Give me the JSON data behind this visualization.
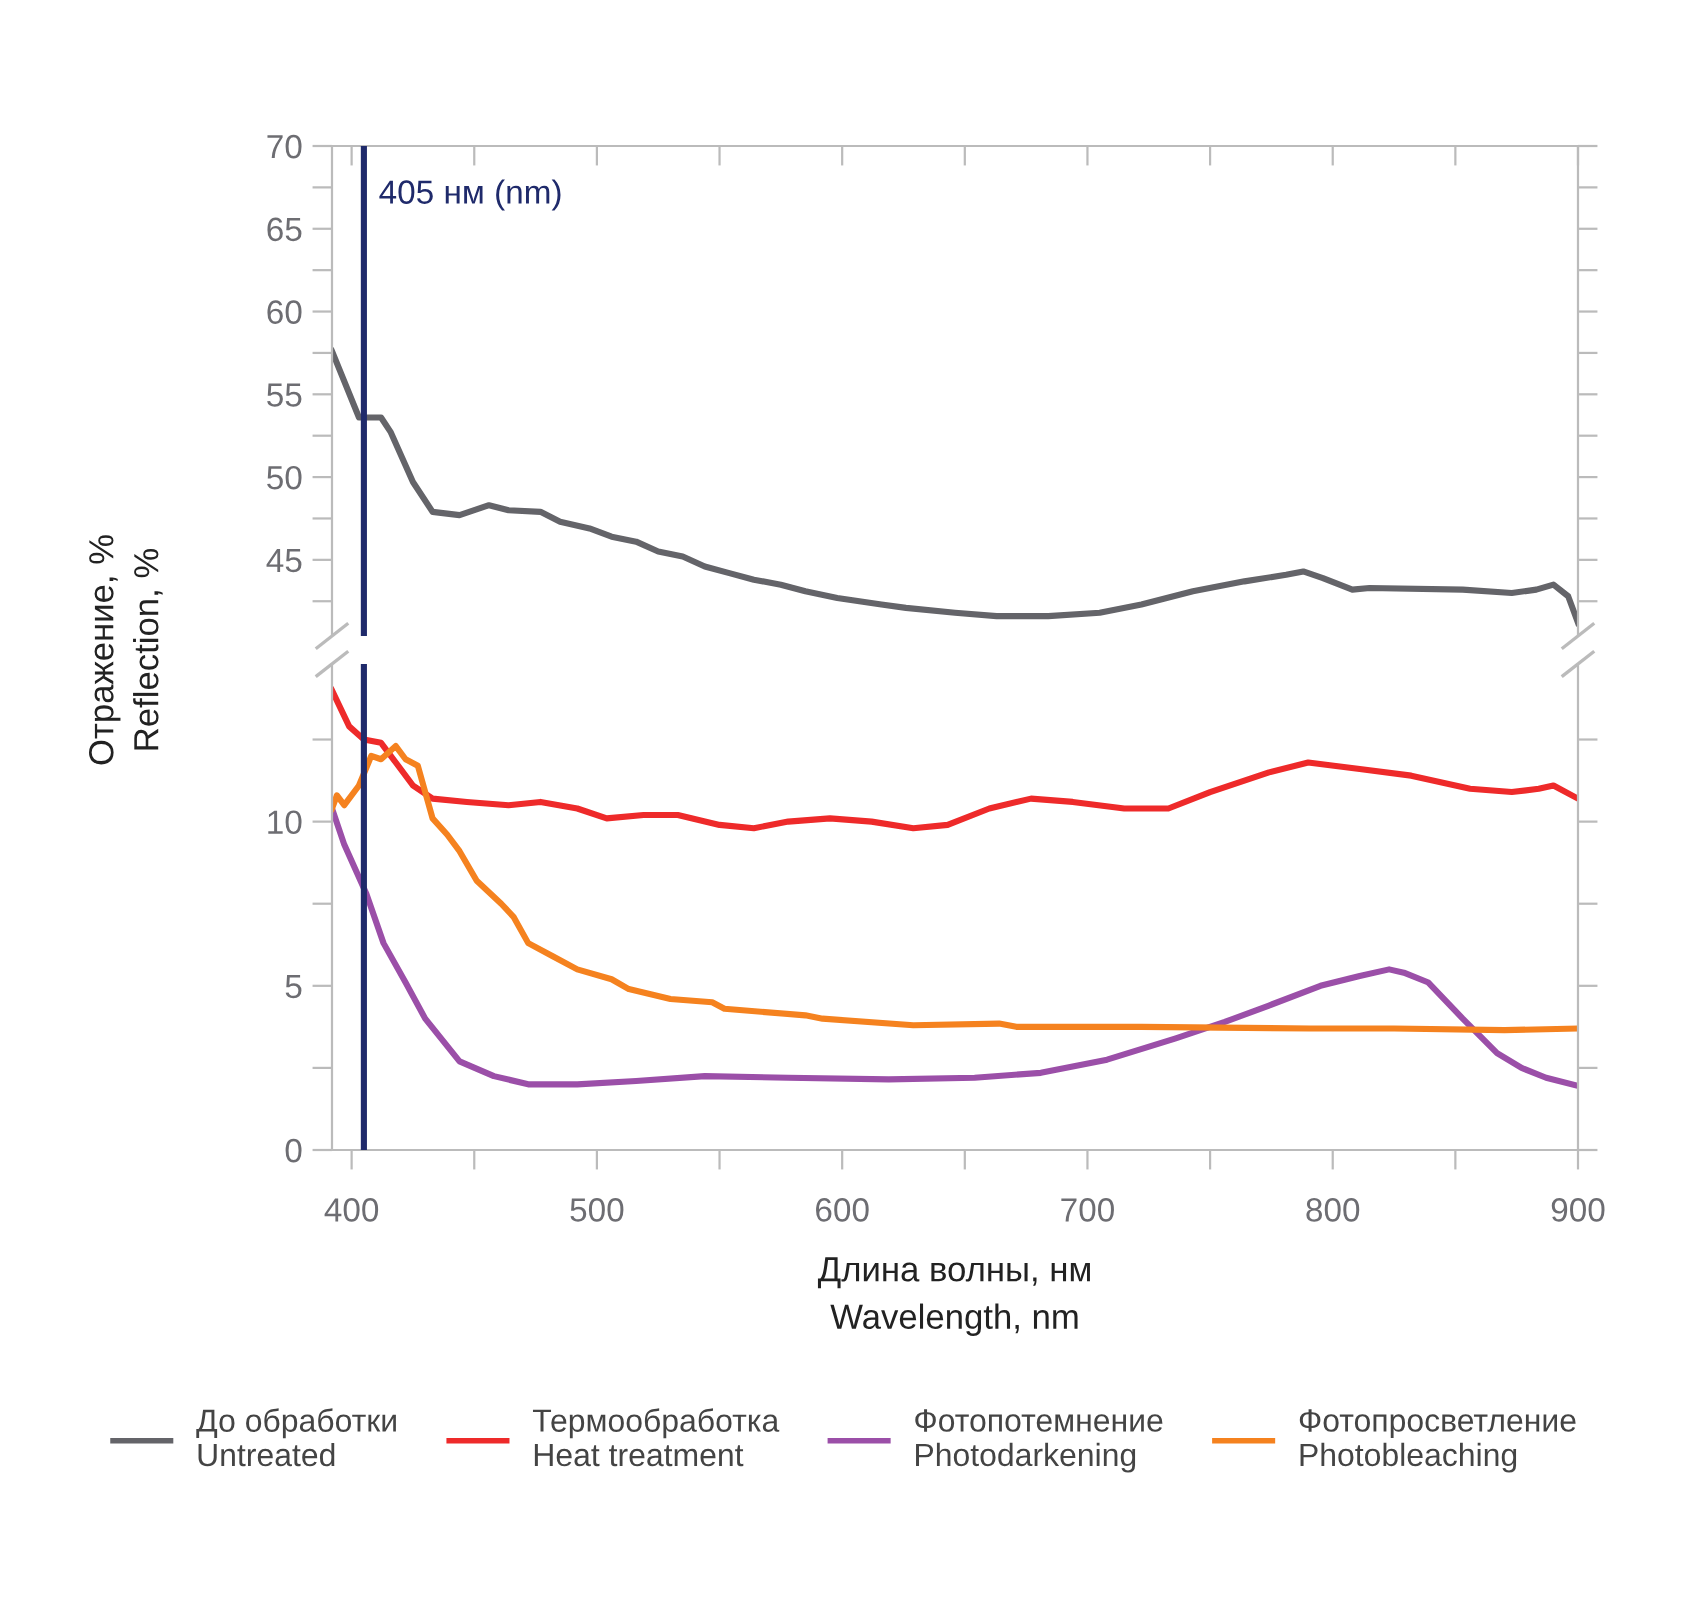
{
  "chart_data": [
    {
      "type": "line",
      "ylabel": "Отражение, %\nReflection, %",
      "xlim": [
        392,
        900
      ],
      "xticks": [
        {
          "value": 400,
          "label": null
        },
        {
          "value": 450,
          "label": null
        },
        {
          "value": 500,
          "label": null
        },
        {
          "value": 550,
          "label": null
        },
        {
          "value": 600,
          "label": null
        },
        {
          "value": 650,
          "label": null
        },
        {
          "value": 700,
          "label": null
        },
        {
          "value": 750,
          "label": null
        },
        {
          "value": 800,
          "label": null
        },
        {
          "value": 850,
          "label": null
        },
        {
          "value": 900,
          "label": null
        }
      ],
      "ylim": [
        40.4,
        70
      ],
      "yticks": [
        {
          "value": 42.5,
          "label": null
        },
        45,
        {
          "value": 47.5,
          "label": null
        },
        50,
        {
          "value": 52.5,
          "label": null
        },
        55,
        {
          "value": 57.5,
          "label": null
        },
        60,
        {
          "value": 62.5,
          "label": null
        },
        65,
        {
          "value": 67.5,
          "label": null
        },
        70
      ],
      "tick_labels": "y",
      "grid": false,
      "ref_lines": [
        {
          "axis": "x",
          "value": 405,
          "label": "405 нм (nm)",
          "color": "#1f2a6b"
        }
      ],
      "series": [
        {
          "name": "До обработки\nUntreated",
          "color": "#646469",
          "x": [
            392,
            403,
            412,
            416,
            425,
            433,
            444,
            456,
            464,
            477,
            485,
            497,
            506,
            516,
            525,
            535,
            544,
            554,
            564,
            575,
            585,
            598,
            616,
            626,
            646,
            663,
            684,
            705,
            722,
            743,
            764,
            781,
            788,
            796,
            808,
            815,
            853,
            873,
            883,
            890,
            896,
            900
          ],
          "values": [
            57.6,
            53.6,
            53.6,
            52.7,
            49.7,
            47.9,
            47.7,
            48.3,
            48.0,
            47.9,
            47.3,
            46.9,
            46.4,
            46.1,
            45.5,
            45.2,
            44.6,
            44.2,
            43.8,
            43.5,
            43.1,
            42.7,
            42.3,
            42.1,
            41.8,
            41.6,
            41.6,
            41.8,
            42.3,
            43.1,
            43.7,
            44.1,
            44.3,
            43.9,
            43.2,
            43.3,
            43.2,
            43.0,
            43.2,
            43.5,
            42.8,
            41.2
          ]
        }
      ]
    },
    {
      "type": "line",
      "xlabel": "Длина волны, нм\nWavelength, nm",
      "xlim": [
        392,
        900
      ],
      "xticks": [
        400,
        {
          "value": 450,
          "label": null
        },
        500,
        {
          "value": 550,
          "label": null
        },
        600,
        {
          "value": 650,
          "label": null
        },
        700,
        {
          "value": 750,
          "label": null
        },
        800,
        {
          "value": 850,
          "label": null
        },
        900
      ],
      "ylim": [
        0,
        14.8
      ],
      "yticks": [
        0,
        {
          "value": 2.5,
          "label": null
        },
        5,
        {
          "value": 7.5,
          "label": null
        },
        10,
        {
          "value": 12.5,
          "label": null
        }
      ],
      "grid": false,
      "legend": "bottom",
      "ref_lines": [
        {
          "axis": "x",
          "value": 405,
          "color": "#1f2a6b"
        }
      ],
      "series": [
        {
          "name": "Термообработка\nHeat treatment",
          "color": "#ee2a2a",
          "x": [
            392,
            399,
            405,
            412,
            418,
            425,
            433,
            447,
            464,
            477,
            492,
            504,
            519,
            533,
            550,
            564,
            578,
            595,
            612,
            629,
            643,
            660,
            677,
            694,
            715,
            733,
            750,
            774,
            790,
            811,
            832,
            856,
            873,
            884,
            890,
            900
          ],
          "values": [
            14.0,
            12.9,
            12.5,
            12.4,
            11.8,
            11.1,
            10.7,
            10.6,
            10.5,
            10.6,
            10.4,
            10.1,
            10.2,
            10.2,
            9.9,
            9.8,
            10.0,
            10.1,
            10.0,
            9.8,
            9.9,
            10.4,
            10.7,
            10.6,
            10.4,
            10.4,
            10.9,
            11.5,
            11.8,
            11.6,
            11.4,
            11.0,
            10.9,
            11.0,
            11.1,
            10.7
          ]
        },
        {
          "name": "Фотопотемнение\nPhotodarkening",
          "color": "#9b4fa8",
          "x": [
            392,
            397,
            406,
            413,
            422,
            430,
            444,
            458,
            472,
            492,
            516,
            544,
            578,
            619,
            654,
            681,
            708,
            736,
            756,
            774,
            795,
            811,
            823,
            829,
            839,
            853,
            867,
            877,
            887,
            900
          ],
          "values": [
            10.4,
            9.3,
            7.8,
            6.3,
            5.1,
            4.0,
            2.7,
            2.25,
            2.0,
            2.0,
            2.1,
            2.25,
            2.2,
            2.15,
            2.2,
            2.35,
            2.75,
            3.4,
            3.9,
            4.4,
            5.0,
            5.3,
            5.5,
            5.4,
            5.1,
            4.0,
            2.95,
            2.5,
            2.2,
            1.95
          ]
        },
        {
          "name": "Фотопросветление\nPhotobleaching",
          "color": "#f5821f",
          "x": [
            392,
            394,
            397,
            403,
            408,
            412,
            418,
            422,
            427,
            433,
            439,
            444,
            451,
            461,
            466,
            472,
            482,
            492,
            506,
            513,
            530,
            547,
            552,
            585,
            592,
            629,
            664,
            671,
            722,
            791,
            825,
            870,
            900
          ],
          "values": [
            10.4,
            10.8,
            10.5,
            11.1,
            12.0,
            11.9,
            12.3,
            11.9,
            11.7,
            10.1,
            9.6,
            9.1,
            8.2,
            7.5,
            7.1,
            6.3,
            5.9,
            5.5,
            5.2,
            4.9,
            4.6,
            4.5,
            4.3,
            4.1,
            4.0,
            3.8,
            3.85,
            3.75,
            3.75,
            3.7,
            3.7,
            3.65,
            3.7
          ]
        }
      ]
    }
  ]
}
